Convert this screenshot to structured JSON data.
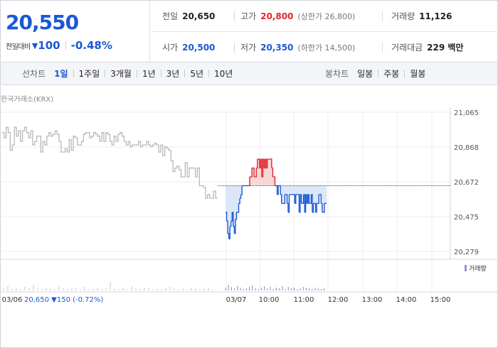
{
  "summary": {
    "price": "20,550",
    "diff_label": "전일대비",
    "diff_icon": "down-triangle-icon",
    "diff_value": "100",
    "diff_rate": "-0.48%",
    "prev_close_label": "전일",
    "prev_close": "20,650",
    "high_label": "고가",
    "high": "20,800",
    "upper_limit": "(상한가 26,800)",
    "volume_label": "거래량",
    "volume": "11,126",
    "open_label": "시가",
    "open": "20,500",
    "low_label": "저가",
    "low": "20,350",
    "lower_limit": "(하한가 14,500)",
    "trade_value_label": "거래대금",
    "trade_value": "229 백만"
  },
  "tabs": {
    "line_label": "선차트",
    "line_tabs": [
      "1일",
      "1주일",
      "3개월",
      "1년",
      "3년",
      "5년",
      "10년"
    ],
    "active_line_tab": "1일",
    "candle_label": "봉차트",
    "candle_tabs": [
      "일봉",
      "주봉",
      "월봉"
    ]
  },
  "chart": {
    "source": "한국거래소(KRX)",
    "y_ticks": [
      "21,065",
      "20,868",
      "20,672",
      "20,475",
      "20,279"
    ],
    "x_ticks": [
      "03/06",
      "03/07",
      "10:00",
      "11:00",
      "12:00",
      "13:00",
      "14:00",
      "15:00"
    ],
    "volume_legend": "거래량",
    "prev_day_summary": "20,650 ▼150 (-0.72%)",
    "colors": {
      "up": "#e0262e",
      "down": "#1a58d4",
      "prev_day": "#b8b8b8",
      "up_fill": "#f7d7d8",
      "down_fill": "#dbe7f8"
    }
  },
  "chart_data": {
    "type": "line",
    "title": "",
    "xlabel": "",
    "ylabel": "",
    "ylim": [
      20279,
      21065
    ],
    "reference_line": 20650,
    "series": [
      {
        "values": [
          20950,
          20920,
          20980,
          20950,
          20850,
          20880,
          20980,
          20930,
          20960,
          20900,
          20960,
          20980,
          20950,
          20920,
          20960,
          20880,
          20900,
          20930,
          20930,
          20840,
          20900,
          20880,
          20930,
          20950,
          20930,
          20940,
          20960,
          20940,
          20900,
          20840,
          20840,
          20860,
          20840,
          20910,
          20850,
          20930,
          20920,
          20880,
          20880,
          20900,
          20940,
          20950,
          20950,
          20920,
          20930,
          20950,
          20940,
          20930,
          20900,
          20950,
          20900,
          20950,
          20940,
          20900,
          20880,
          20930,
          20900,
          20940,
          20950,
          20930,
          20900,
          20880,
          20900,
          20870,
          20880,
          20880,
          20880,
          20900,
          20870,
          20880,
          20880,
          20900,
          20880,
          20870,
          20880,
          20890,
          20880,
          20840,
          20880,
          20820,
          20870,
          20860,
          20850,
          20790,
          20730,
          20750,
          20760,
          20740,
          20700,
          20700,
          20780,
          20700,
          20750,
          20750,
          20750,
          20700,
          20750,
          20650,
          20650,
          20640,
          20580,
          20600,
          20580,
          20580,
          20620,
          20580,
          20580
        ]
      },
      {
        "values": [
          20500,
          20450,
          20380,
          20350,
          20420,
          20450,
          20500,
          20420,
          20380,
          20460,
          20500,
          20500,
          20550,
          20580,
          20600,
          20650,
          20650,
          20650,
          20650,
          20650,
          20650,
          20650,
          20700,
          20700,
          20750,
          20750,
          20700,
          20700,
          20750,
          20800,
          20800,
          20750,
          20800,
          20700,
          20800,
          20750,
          20800,
          20750,
          20800,
          20800,
          20800,
          20800,
          20750,
          20700,
          20700,
          20650,
          20650,
          20600,
          20650,
          20650,
          20600,
          20550,
          20550,
          20550,
          20600,
          20600,
          20550,
          20500,
          20600,
          20600,
          20600,
          20600,
          20600,
          20550,
          20600,
          20600,
          20600,
          20500,
          20600,
          20550,
          20550,
          20600,
          20500,
          20600,
          20550,
          20600,
          20550,
          20550,
          20600,
          20500,
          20550,
          20550,
          20500,
          20550,
          20550,
          20600,
          20600,
          20550,
          20500,
          20500,
          20550,
          20550,
          20550
        ]
      }
    ]
  }
}
